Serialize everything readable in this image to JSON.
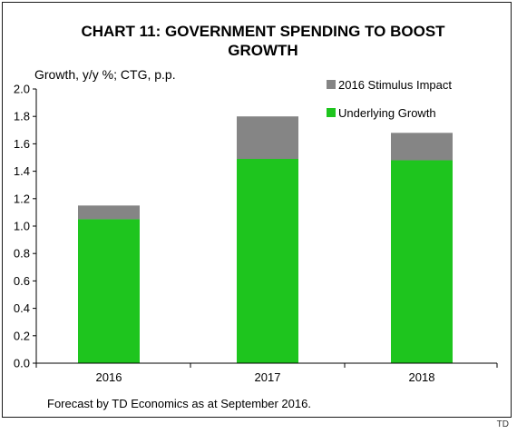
{
  "title_line1": "CHART 11: GOVERNMENT SPENDING TO BOOST",
  "title_line2": "GROWTH",
  "footnote": "Forecast by TD Economics as at September 2016.",
  "source_mark": "TD",
  "colors": {
    "underlying": "#1ec51e",
    "stimulus": "#858585",
    "axis": "#000000"
  },
  "chart_data": {
    "type": "bar",
    "stacked": true,
    "title": "CHART 11: GOVERNMENT SPENDING TO BOOST GROWTH",
    "ylabel": "Growth, y/y %; CTG, p.p.",
    "xlabel": "",
    "categories": [
      "2016",
      "2017",
      "2018"
    ],
    "series": [
      {
        "name": "Underlying Growth",
        "values": [
          1.05,
          1.49,
          1.48
        ]
      },
      {
        "name": "2016 Stimulus Impact",
        "values": [
          0.1,
          0.31,
          0.2
        ]
      }
    ],
    "ylim": [
      0.0,
      2.0
    ],
    "yticks": [
      "0.0",
      "0.2",
      "0.4",
      "0.6",
      "0.8",
      "1.0",
      "1.2",
      "1.4",
      "1.6",
      "1.8",
      "2.0"
    ],
    "legend": [
      "2016 Stimulus Impact",
      "Underlying Growth"
    ],
    "legend_position": "top-right",
    "grid": false
  }
}
